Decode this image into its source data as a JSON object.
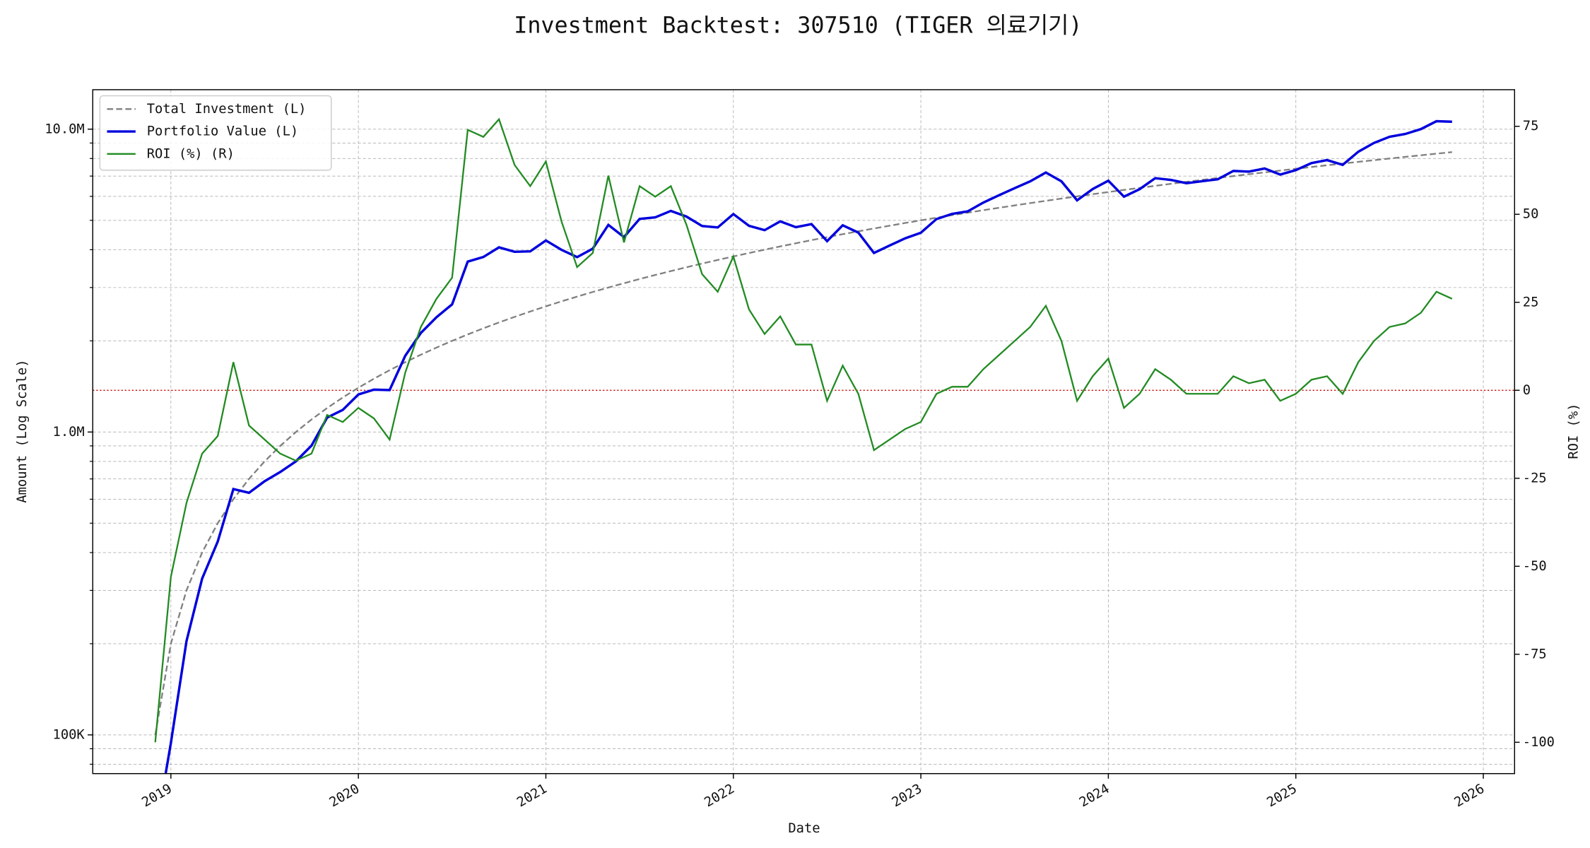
{
  "chart_data": {
    "type": "line",
    "title": "Investment Backtest: 307510 (TIGER 의료기기)",
    "x_label": "Date",
    "y_label": "Amount (Log Scale)",
    "y2_label": "ROI (%)",
    "y_label_color": "#0000cc",
    "y2_label_color": "#228b22",
    "log_y": true,
    "grid": true,
    "legend": "upper left",
    "x": [
      "2018-12",
      "2019-01",
      "2019-02",
      "2019-03",
      "2019-04",
      "2019-05",
      "2019-06",
      "2019-07",
      "2019-08",
      "2019-09",
      "2019-10",
      "2019-11",
      "2019-12",
      "2020-01",
      "2020-02",
      "2020-03",
      "2020-04",
      "2020-05",
      "2020-06",
      "2020-07",
      "2020-08",
      "2020-09",
      "2020-10",
      "2020-11",
      "2020-12",
      "2021-01",
      "2021-02",
      "2021-03",
      "2021-04",
      "2021-05",
      "2021-06",
      "2021-07",
      "2021-08",
      "2021-09",
      "2021-10",
      "2021-11",
      "2021-12",
      "2022-01",
      "2022-02",
      "2022-03",
      "2022-04",
      "2022-05",
      "2022-06",
      "2022-07",
      "2022-08",
      "2022-09",
      "2022-10",
      "2022-11",
      "2022-12",
      "2023-01",
      "2023-02",
      "2023-03",
      "2023-04",
      "2023-05",
      "2023-06",
      "2023-07",
      "2023-08",
      "2023-09",
      "2023-10",
      "2023-11",
      "2023-12",
      "2024-01",
      "2024-02",
      "2024-03",
      "2024-04",
      "2024-05",
      "2024-06",
      "2024-07",
      "2024-08",
      "2024-09",
      "2024-10",
      "2024-11",
      "2024-12",
      "2025-01",
      "2025-02",
      "2025-03",
      "2025-04",
      "2025-05",
      "2025-06",
      "2025-07",
      "2025-08",
      "2025-09",
      "2025-10",
      "2025-11"
    ],
    "xlim": [
      "2018-08",
      "2026-03"
    ],
    "xticks": [
      "2019",
      "2020",
      "2021",
      "2022",
      "2023",
      "2024",
      "2025",
      "2026"
    ],
    "ylim": [
      74500,
      13500000
    ],
    "yticks": [
      {
        "value": 100000,
        "label": "100K"
      },
      {
        "value": 1000000,
        "label": "1.0M"
      },
      {
        "value": 10000000,
        "label": "10.0M"
      }
    ],
    "yminorticks": [
      80000,
      90000,
      200000,
      300000,
      400000,
      500000,
      600000,
      700000,
      800000,
      900000,
      2000000,
      3000000,
      4000000,
      5000000,
      6000000,
      7000000,
      8000000,
      9000000
    ],
    "y2lim": [
      -108.9,
      85.4
    ],
    "y2ticks": [
      -100,
      -75,
      -50,
      -25,
      0,
      25,
      50,
      75
    ],
    "reference_line": {
      "axis": "y2",
      "value": 0,
      "color": "#cc0000"
    },
    "series": [
      {
        "name": "Total Investment (L)",
        "color": "#808080",
        "axis": "y",
        "linestyle": "dashed",
        "values": [
          100000,
          200000,
          300000,
          400000,
          500000,
          600000,
          700000,
          800000,
          900000,
          1000000,
          1100000,
          1200000,
          1300000,
          1400000,
          1500000,
          1600000,
          1700000,
          1800000,
          1900000,
          2000000,
          2100000,
          2200000,
          2300000,
          2400000,
          2500000,
          2600000,
          2700000,
          2800000,
          2900000,
          3000000,
          3100000,
          3200000,
          3300000,
          3400000,
          3500000,
          3600000,
          3700000,
          3800000,
          3900000,
          4000000,
          4100000,
          4200000,
          4300000,
          4400000,
          4500000,
          4600000,
          4700000,
          4800000,
          4900000,
          5000000,
          5100000,
          5200000,
          5300000,
          5400000,
          5500000,
          5600000,
          5700000,
          5800000,
          5900000,
          6000000,
          6100000,
          6200000,
          6300000,
          6400000,
          6500000,
          6600000,
          6700000,
          6800000,
          6900000,
          7000000,
          7100000,
          7200000,
          7300000,
          7400000,
          7500000,
          7600000,
          7700000,
          7800000,
          7900000,
          8000000,
          8100000,
          8200000,
          8300000,
          8400000
        ]
      },
      {
        "name": "Portfolio Value (L)",
        "color": "#0000dd",
        "axis": "y",
        "linestyle": "solid",
        "values": [
          0,
          94000,
          204000,
          328000,
          435000,
          648000,
          630000,
          688000,
          738000,
          800000,
          902000,
          1116000,
          1183000,
          1330000,
          1380000,
          1376000,
          1785000,
          2124000,
          2394000,
          2640000,
          3654000,
          3784000,
          4071000,
          3936000,
          3950000,
          4290000,
          3996000,
          3780000,
          4031000,
          4830000,
          4402000,
          5056000,
          5115000,
          5372000,
          5145000,
          4788000,
          4736000,
          5244000,
          4797000,
          4640000,
          4961000,
          4746000,
          4859000,
          4268000,
          4815000,
          4554000,
          3901000,
          4128000,
          4361000,
          4550000,
          5049000,
          5252000,
          5353000,
          5724000,
          6050000,
          6384000,
          6726000,
          7192000,
          6726000,
          5820000,
          6344000,
          6758000,
          5985000,
          6336000,
          6890000,
          6798000,
          6633000,
          6732000,
          6831000,
          7280000,
          7242000,
          7416000,
          7081000,
          7326000,
          7725000,
          7904000,
          7623000,
          8424000,
          9006000,
          9440000,
          9639000,
          10004000,
          10624000,
          10584000
        ]
      },
      {
        "name": "ROI (%) (R)",
        "color": "#228b22",
        "axis": "y2",
        "linestyle": "solid",
        "values": [
          -100,
          -53,
          -32,
          -18,
          -13,
          8,
          -10,
          -14,
          -18,
          -20,
          -18,
          -7,
          -9,
          -5,
          -8,
          -14,
          5,
          18,
          26,
          32,
          74,
          72,
          77,
          64,
          58,
          65,
          48,
          35,
          39,
          61,
          42,
          58,
          55,
          58,
          47,
          33,
          28,
          38,
          23,
          16,
          21,
          13,
          13,
          -3,
          7,
          -1,
          -17,
          -14,
          -11,
          -9,
          -1,
          1,
          1,
          6,
          10,
          14,
          18,
          24,
          14,
          -3,
          4,
          9,
          -5,
          -1,
          6,
          3,
          -1,
          -1,
          -1,
          4,
          2,
          3,
          -3,
          -1,
          3,
          4,
          -1,
          8,
          14,
          18,
          19,
          22,
          28,
          26
        ]
      }
    ]
  }
}
